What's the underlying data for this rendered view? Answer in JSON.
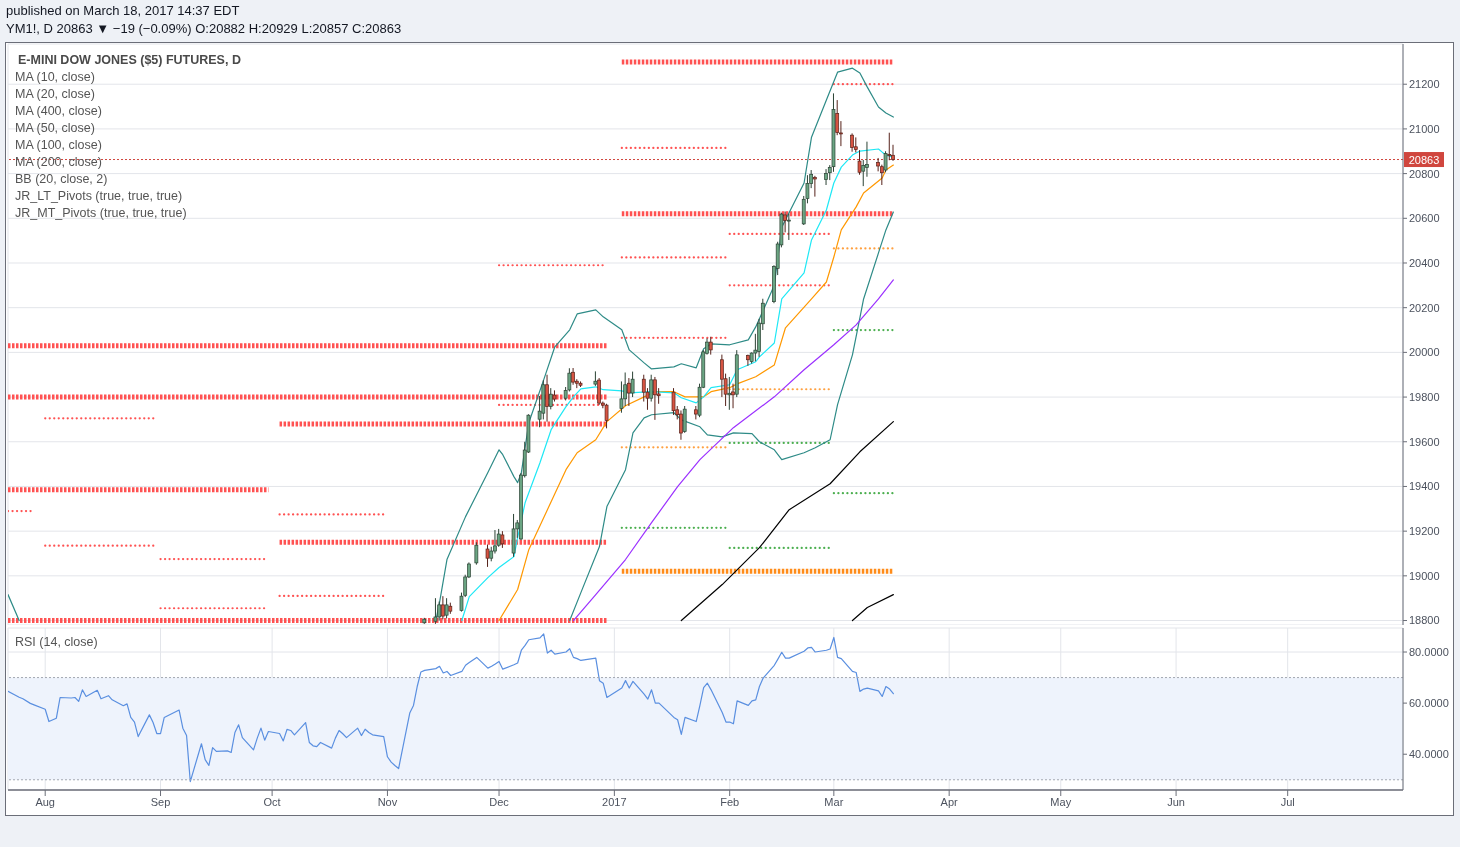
{
  "chart_data": [
    {
      "type": "candlestick",
      "title": "YM1!, D 20863 ▼ −19 (−0.09%) O:20882 H:20929 L:20857 C:20863",
      "subtitle": "E-MINI DOW JONES ($5) FUTURES, D",
      "annotations": [
        "published on March 18, 2017 14:37 EDT",
        "MA (10, close)",
        "MA (20, close)",
        "MA (400, close)",
        "MA (50, close)",
        "MA (100, close)",
        "MA (200, close)",
        "BB (20, close, 2)",
        "JR_LT_Pivots (true, true, true)",
        "JR_MT_Pivots (true, true, true)"
      ],
      "x": [
        "2016-11-11",
        "2016-11-14",
        "2016-11-15",
        "2016-11-16",
        "2016-11-17",
        "2016-11-18",
        "2016-11-21",
        "2016-11-22",
        "2016-11-23",
        "2016-11-25",
        "2016-11-28",
        "2016-11-29",
        "2016-11-30",
        "2016-12-01",
        "2016-12-02",
        "2016-12-05",
        "2016-12-06",
        "2016-12-07",
        "2016-12-08",
        "2016-12-09",
        "2016-12-12",
        "2016-12-13",
        "2016-12-14",
        "2016-12-15",
        "2016-12-16",
        "2016-12-19",
        "2016-12-20",
        "2016-12-21",
        "2016-12-22",
        "2016-12-23",
        "2016-12-27",
        "2016-12-28",
        "2016-12-29",
        "2016-12-30",
        "2017-01-03",
        "2017-01-04",
        "2017-01-05",
        "2017-01-06",
        "2017-01-09",
        "2017-01-10",
        "2017-01-11",
        "2017-01-12",
        "2017-01-13",
        "2017-01-17",
        "2017-01-18",
        "2017-01-19",
        "2017-01-20",
        "2017-01-23",
        "2017-01-24",
        "2017-01-25",
        "2017-01-26",
        "2017-01-27",
        "2017-01-30",
        "2017-01-31",
        "2017-02-01",
        "2017-02-02",
        "2017-02-03",
        "2017-02-06",
        "2017-02-07",
        "2017-02-08",
        "2017-02-09",
        "2017-02-10",
        "2017-02-13",
        "2017-02-14",
        "2017-02-15",
        "2017-02-16",
        "2017-02-17",
        "2017-02-21",
        "2017-02-22",
        "2017-02-23",
        "2017-02-24",
        "2017-02-27",
        "2017-02-28",
        "2017-03-01",
        "2017-03-02",
        "2017-03-03",
        "2017-03-06",
        "2017-03-07",
        "2017-03-08",
        "2017-03-09",
        "2017-03-10",
        "2017-03-13",
        "2017-03-14",
        "2017-03-15",
        "2017-03-16",
        "2017-03-17"
      ],
      "ohlc": [
        [
          18790,
          18812,
          18785,
          18806
        ],
        [
          18797,
          18900,
          18785,
          18816
        ],
        [
          18816,
          18885,
          18800,
          18870
        ],
        [
          18870,
          18909,
          18805,
          18820
        ],
        [
          18824,
          18900,
          18810,
          18870
        ],
        [
          18864,
          18880,
          18830,
          18842
        ],
        [
          18845,
          18925,
          18840,
          18909
        ],
        [
          18913,
          19005,
          18905,
          18995
        ],
        [
          18995,
          19060,
          18990,
          19053
        ],
        [
          19058,
          19150,
          19050,
          19137
        ],
        [
          19120,
          19140,
          19040,
          19079
        ],
        [
          19079,
          19130,
          19065,
          19111
        ],
        [
          19111,
          19205,
          19100,
          19134
        ],
        [
          19137,
          19210,
          19130,
          19187
        ],
        [
          19183,
          19200,
          19125,
          19143
        ],
        [
          19102,
          19277,
          19085,
          19210
        ],
        [
          19210,
          19250,
          19170,
          19237
        ],
        [
          19165,
          19460,
          19160,
          19451
        ],
        [
          19448,
          19600,
          19440,
          19563
        ],
        [
          19554,
          19723,
          19550,
          19719
        ],
        [
          19701,
          19805,
          19665,
          19737
        ],
        [
          19728,
          19875,
          19700,
          19855
        ],
        [
          19855,
          19900,
          19690,
          19758
        ],
        [
          19758,
          19840,
          19745,
          19813
        ],
        [
          19809,
          19830,
          19780,
          19791
        ],
        [
          19795,
          19845,
          19785,
          19829
        ],
        [
          19832,
          19929,
          19825,
          19907
        ],
        [
          19911,
          19930,
          19855,
          19867
        ],
        [
          19871,
          19880,
          19840,
          19862
        ],
        [
          19862,
          19870,
          19845,
          19853
        ],
        [
          19858,
          19915,
          19850,
          19871
        ],
        [
          19876,
          19885,
          19765,
          19773
        ],
        [
          19773,
          19780,
          19750,
          19764
        ],
        [
          19764,
          19770,
          19660,
          19695
        ],
        [
          19749,
          19870,
          19730,
          19792
        ],
        [
          19792,
          19910,
          19760,
          19855
        ],
        [
          19862,
          19885,
          19760,
          19818
        ],
        [
          19818,
          19914,
          19800,
          19880
        ],
        [
          19880,
          19900,
          19780,
          19822
        ],
        [
          19822,
          19840,
          19743,
          19795
        ],
        [
          19795,
          19900,
          19780,
          19877
        ],
        [
          19877,
          19890,
          19698,
          19810
        ],
        [
          19814,
          19840,
          19770,
          19806
        ],
        [
          19822,
          19840,
          19720,
          19739
        ],
        [
          19743,
          19760,
          19700,
          19721
        ],
        [
          19724,
          19740,
          19609,
          19639
        ],
        [
          19646,
          19760,
          19640,
          19746
        ],
        [
          19743,
          19760,
          19700,
          19724
        ],
        [
          19719,
          19860,
          19710,
          19844
        ],
        [
          19844,
          20010,
          19840,
          20002
        ],
        [
          19996,
          20063,
          19990,
          20046
        ],
        [
          20046,
          20070,
          19990,
          20011
        ],
        [
          19967,
          19990,
          19800,
          19880
        ],
        [
          19882,
          19905,
          19760,
          19813
        ],
        [
          19810,
          19890,
          19743,
          19817
        ],
        [
          19823,
          19860,
          19750,
          19810
        ],
        [
          19813,
          20010,
          19800,
          19989
        ],
        [
          19986,
          19990,
          19940,
          19967
        ],
        [
          19959,
          20000,
          19950,
          19997
        ],
        [
          19997,
          20083,
          19960,
          20010
        ],
        [
          20004,
          20150,
          19980,
          20131
        ],
        [
          20128,
          20240,
          20100,
          20220
        ],
        [
          20227,
          20390,
          20220,
          20384
        ],
        [
          20376,
          20495,
          20346,
          20485
        ],
        [
          20481,
          20625,
          20470,
          20619
        ],
        [
          20615,
          20630,
          20537,
          20590
        ],
        [
          20590,
          20620,
          20503,
          20592
        ],
        [
          20575,
          20700,
          20570,
          20685
        ],
        [
          20688,
          20793,
          20667,
          20756
        ],
        [
          20756,
          20816,
          20735,
          20797
        ],
        [
          20782,
          20790,
          20697,
          20776
        ],
        [
          20774,
          20820,
          20749,
          20801
        ],
        [
          20804,
          20838,
          20771,
          20828
        ],
        [
          20831,
          21159,
          20808,
          21087
        ],
        [
          21069,
          21129,
          20972,
          20984
        ],
        [
          20982,
          21035,
          20923,
          20980
        ],
        [
          20972,
          20980,
          20898,
          20917
        ],
        [
          20920,
          20962,
          20895,
          20908
        ],
        [
          20856,
          20905,
          20795,
          20806
        ],
        [
          20811,
          20861,
          20744,
          20837
        ],
        [
          20828,
          20943,
          20786,
          20841
        ],
        [
          20850,
          20870,
          20810,
          20834
        ],
        [
          20831,
          20840,
          20749,
          20804
        ],
        [
          20816,
          20900,
          20806,
          20890
        ],
        [
          20886,
          20983,
          20860,
          20882
        ],
        [
          20882,
          20929,
          20857,
          20863
        ]
      ],
      "colors": [
        "#6ba583",
        "#6ba583",
        "#6ba583",
        "#d75442",
        "#6ba583",
        "#d75442",
        "#6ba583",
        "#6ba583",
        "#6ba583",
        "#6ba583",
        "#d75442",
        "#6ba583",
        "#6ba583",
        "#6ba583",
        "#d75442",
        "#6ba583",
        "#6ba583",
        "#6ba583",
        "#6ba583",
        "#6ba583",
        "#6ba583",
        "#6ba583",
        "#d75442",
        "#6ba583",
        "#d75442",
        "#6ba583",
        "#6ba583",
        "#d75442",
        "#d75442",
        "#d75442",
        "#6ba583",
        "#d75442",
        "#d75442",
        "#d75442",
        "#6ba583",
        "#6ba583",
        "#d75442",
        "#6ba583",
        "#d75442",
        "#d75442",
        "#6ba583",
        "#d75442",
        "#d75442",
        "#d75442",
        "#d75442",
        "#d75442",
        "#6ba583",
        "#d75442",
        "#6ba583",
        "#6ba583",
        "#6ba583",
        "#d75442",
        "#d75442",
        "#d75442",
        "#6ba583",
        "#d75442",
        "#6ba583",
        "#d75442",
        "#6ba583",
        "#6ba583",
        "#6ba583",
        "#6ba583",
        "#6ba583",
        "#6ba583",
        "#6ba583",
        "#d75442",
        "#6ba583",
        "#6ba583",
        "#6ba583",
        "#6ba583",
        "#d75442",
        "#6ba583",
        "#6ba583",
        "#6ba583",
        "#d75442",
        "#d75442",
        "#d75442",
        "#d75442",
        "#d75442",
        "#6ba583",
        "#6ba583",
        "#d75442",
        "#d75442",
        "#6ba583",
        "#d75442",
        "#d75442"
      ],
      "series": [
        {
          "type": "line",
          "color": "#ff5252",
          "line_style": "dashed",
          "x": [
            "2016-07-22",
            "2016-12-30"
          ],
          "values": [
            20030,
            20030
          ]
        },
        {
          "type": "line",
          "color": "#ff5252",
          "line_style": "dashed",
          "x": [
            "2016-07-22",
            "2016-12-30"
          ],
          "values": [
            19800,
            19800
          ]
        },
        {
          "type": "line",
          "color": "#ff5252",
          "line_style": "dashed",
          "x": [
            "2016-10-03",
            "2016-12-30"
          ],
          "values": [
            19680,
            19680
          ]
        },
        {
          "type": "line",
          "color": "#ff5252",
          "line_style": "dashed",
          "x": [
            "2016-07-22",
            "2016-09-30"
          ],
          "values": [
            19385,
            19385
          ]
        },
        {
          "type": "line",
          "color": "#ff5252",
          "line_style": "dashed",
          "x": [
            "2016-10-03",
            "2016-12-30"
          ],
          "values": [
            19150,
            19150
          ]
        },
        {
          "type": "line",
          "color": "#ff5252",
          "line_style": "dashed",
          "x": [
            "2016-07-22",
            "2016-12-30"
          ],
          "values": [
            18800,
            18800
          ]
        },
        {
          "type": "line",
          "color": "#ff5252",
          "line_style": "dashed",
          "x": [
            "2017-01-03",
            "2017-03-17"
          ],
          "values": [
            21300,
            21300
          ]
        },
        {
          "type": "line",
          "color": "#ff5252",
          "line_style": "dashed",
          "x": [
            "2017-01-03",
            "2017-03-17"
          ],
          "values": [
            20620,
            20620
          ]
        },
        {
          "type": "line",
          "color": "#ff8c1a",
          "line_style": "dashed",
          "x": [
            "2017-01-03",
            "2017-03-17"
          ],
          "values": [
            19020,
            19020
          ]
        },
        {
          "type": "line",
          "color": "#ff5252",
          "line_style": "dotted",
          "x": [
            "2016-07-22",
            "2016-07-29"
          ],
          "values": [
            19290,
            19290
          ]
        },
        {
          "type": "line",
          "color": "#ff5252",
          "line_style": "dotted",
          "x": [
            "2016-08-01",
            "2016-08-31"
          ],
          "values": [
            19705,
            19705
          ]
        },
        {
          "type": "line",
          "color": "#ff5252",
          "line_style": "dotted",
          "x": [
            "2016-08-01",
            "2016-08-31"
          ],
          "values": [
            19135,
            19135
          ]
        },
        {
          "type": "line",
          "color": "#ff5252",
          "line_style": "dotted",
          "x": [
            "2016-09-01",
            "2016-09-30"
          ],
          "values": [
            19075,
            19075
          ]
        },
        {
          "type": "line",
          "color": "#ff5252",
          "line_style": "dotted",
          "x": [
            "2016-09-01",
            "2016-09-30"
          ],
          "values": [
            18855,
            18855
          ]
        },
        {
          "type": "line",
          "color": "#ff5252",
          "line_style": "dotted",
          "x": [
            "2016-10-03",
            "2016-10-31"
          ],
          "values": [
            19275,
            19275
          ]
        },
        {
          "type": "line",
          "color": "#ff5252",
          "line_style": "dotted",
          "x": [
            "2016-10-03",
            "2016-10-31"
          ],
          "values": [
            18910,
            18910
          ]
        },
        {
          "type": "line",
          "color": "#ff5252",
          "line_style": "dotted",
          "x": [
            "2016-12-01",
            "2016-12-30"
          ],
          "values": [
            20390,
            20390
          ]
        },
        {
          "type": "line",
          "color": "#ff5252",
          "line_style": "dotted",
          "x": [
            "2016-12-01",
            "2016-12-30"
          ],
          "values": [
            19765,
            19765
          ]
        },
        {
          "type": "line",
          "color": "#ff5252",
          "line_style": "dotted",
          "x": [
            "2017-01-03",
            "2017-01-31"
          ],
          "values": [
            20915,
            20915
          ]
        },
        {
          "type": "line",
          "color": "#ff5252",
          "line_style": "dotted",
          "x": [
            "2017-01-03",
            "2017-01-31"
          ],
          "values": [
            20425,
            20425
          ]
        },
        {
          "type": "line",
          "color": "#ff5252",
          "line_style": "dotted",
          "x": [
            "2017-01-03",
            "2017-01-31"
          ],
          "values": [
            20065,
            20065
          ]
        },
        {
          "type": "line",
          "color": "#ffa040",
          "line_style": "dotted",
          "x": [
            "2017-01-03",
            "2017-01-31"
          ],
          "values": [
            19575,
            19575
          ]
        },
        {
          "type": "line",
          "color": "#4caf50",
          "line_style": "dotted",
          "x": [
            "2017-01-03",
            "2017-01-31"
          ],
          "values": [
            19215,
            19215
          ]
        },
        {
          "type": "line",
          "color": "#ff5252",
          "line_style": "dotted",
          "x": [
            "2017-02-01",
            "2017-02-28"
          ],
          "values": [
            20530,
            20530
          ]
        },
        {
          "type": "line",
          "color": "#ff5252",
          "line_style": "dotted",
          "x": [
            "2017-02-01",
            "2017-02-28"
          ],
          "values": [
            20300,
            20300
          ]
        },
        {
          "type": "line",
          "color": "#ffa040",
          "line_style": "dotted",
          "x": [
            "2017-02-01",
            "2017-02-28"
          ],
          "values": [
            19835,
            19835
          ]
        },
        {
          "type": "line",
          "color": "#4caf50",
          "line_style": "dotted",
          "x": [
            "2017-02-01",
            "2017-02-28"
          ],
          "values": [
            19595,
            19595
          ]
        },
        {
          "type": "line",
          "color": "#4caf50",
          "line_style": "dotted",
          "x": [
            "2017-02-01",
            "2017-02-28"
          ],
          "values": [
            19125,
            19125
          ]
        },
        {
          "type": "line",
          "color": "#ff5252",
          "line_style": "dotted",
          "x": [
            "2017-03-01",
            "2017-03-17"
          ],
          "values": [
            21200,
            21200
          ]
        },
        {
          "type": "line",
          "color": "#ffa040",
          "line_style": "dotted",
          "x": [
            "2017-03-01",
            "2017-03-17"
          ],
          "values": [
            20465,
            20465
          ]
        },
        {
          "type": "line",
          "color": "#4caf50",
          "line_style": "dotted",
          "x": [
            "2017-03-01",
            "2017-03-17"
          ],
          "values": [
            20100,
            20100
          ]
        },
        {
          "type": "line",
          "color": "#4caf50",
          "line_style": "dotted",
          "x": [
            "2017-03-01",
            "2017-03-17"
          ],
          "values": [
            19370,
            19370
          ]
        },
        {
          "type": "line",
          "color": "#2e8b87",
          "x": [
            "2016-07-22",
            "2016-07-25",
            "2016-08-15",
            "2016-11-14",
            "2016-11-15",
            "2016-11-17",
            "2016-11-22",
            "2016-11-28",
            "2016-12-01",
            "2016-12-02",
            "2016-12-05",
            "2016-12-06",
            "2016-12-07",
            "2016-12-09",
            "2016-12-13",
            "2016-12-16",
            "2016-12-20",
            "2016-12-22",
            "2016-12-27",
            "2016-12-29",
            "2017-01-03",
            "2017-01-05",
            "2017-01-09",
            "2017-01-11",
            "2017-01-17",
            "2017-01-19",
            "2017-01-23",
            "2017-01-25",
            "2017-01-27",
            "2017-02-01",
            "2017-02-06",
            "2017-02-08",
            "2017-02-09",
            "2017-02-13",
            "2017-02-15",
            "2017-02-21",
            "2017-02-23",
            "2017-02-27",
            "2017-03-02",
            "2017-03-06",
            "2017-03-08",
            "2017-03-10",
            "2017-03-13",
            "2017-03-15",
            "2017-03-17"
          ],
          "values": [
            18916,
            18800,
            null,
            18800,
            18880,
            19073,
            19265,
            19462,
            19564,
            19542,
            19444,
            19417,
            19462,
            19685,
            19877,
            20025,
            20101,
            20172,
            20190,
            20159,
            20101,
            20011,
            19953,
            19926,
            19935,
            19949,
            19931,
            20016,
            20038,
            20034,
            20056,
            20114,
            20150,
            20300,
            20560,
            20758,
            20963,
            21129,
            21254,
            21272,
            21250,
            21187,
            21098,
            21071,
            21053
          ]
        },
        {
          "type": "line",
          "color": "#2e8b87",
          "x": [
            "2016-12-20",
            "2016-12-23",
            "2016-12-28",
            "2016-12-30",
            "2017-01-04",
            "2017-01-06",
            "2017-01-09",
            "2017-01-11",
            "2017-01-17",
            "2017-01-19",
            "2017-01-24",
            "2017-01-26",
            "2017-01-30",
            "2017-02-02",
            "2017-02-07",
            "2017-02-09",
            "2017-02-13",
            "2017-02-15",
            "2017-02-21",
            "2017-02-24",
            "2017-02-28",
            "2017-03-02",
            "2017-03-06",
            "2017-03-08",
            "2017-03-09",
            "2017-03-13",
            "2017-03-15",
            "2017-03-17"
          ],
          "values": [
            18800,
            18925,
            19131,
            19310,
            19475,
            19640,
            19707,
            19721,
            19730,
            19698,
            19667,
            19631,
            19622,
            19640,
            19636,
            19600,
            19564,
            19520,
            19551,
            19573,
            19609,
            19766,
            19989,
            20154,
            20239,
            20445,
            20548,
            20628
          ]
        },
        {
          "type": "line",
          "color": "#000000",
          "x": [
            "2017-01-19",
            "2017-01-30",
            "2017-02-09",
            "2017-02-17",
            "2017-02-28",
            "2017-03-08",
            "2017-03-17"
          ],
          "values": [
            18800,
            18961,
            19126,
            19296,
            19412,
            19555,
            19690
          ]
        },
        {
          "type": "line",
          "color": "#000000",
          "x": [
            "2017-03-06",
            "2017-03-10",
            "2017-03-17"
          ],
          "values": [
            18800,
            18858,
            18916
          ]
        },
        {
          "type": "line",
          "color": "#9b30ff",
          "x": [
            "2016-12-21",
            "2016-12-27",
            "2017-01-04",
            "2017-01-11",
            "2017-01-18",
            "2017-01-24",
            "2017-02-02",
            "2017-02-13",
            "2017-02-21",
            "2017-03-01",
            "2017-03-07",
            "2017-03-13",
            "2017-03-17"
          ],
          "values": [
            18800,
            18916,
            19073,
            19238,
            19399,
            19520,
            19663,
            19801,
            19922,
            20034,
            20123,
            20239,
            20324
          ]
        },
        {
          "type": "line",
          "color": "#ff9800",
          "x": [
            "2016-12-01",
            "2016-12-06",
            "2016-12-09",
            "2016-12-14",
            "2016-12-19",
            "2016-12-22",
            "2016-12-27",
            "2016-12-30",
            "2017-01-04",
            "2017-01-09",
            "2017-01-12",
            "2017-01-17",
            "2017-01-20",
            "2017-01-25",
            "2017-01-27",
            "2017-02-01",
            "2017-02-03",
            "2017-02-08",
            "2017-02-13",
            "2017-02-16",
            "2017-02-23",
            "2017-02-27",
            "2017-03-01",
            "2017-03-03",
            "2017-03-07",
            "2017-03-09",
            "2017-03-14",
            "2017-03-15",
            "2017-03-17"
          ],
          "values": [
            18800,
            18939,
            19117,
            19296,
            19475,
            19551,
            19609,
            19690,
            19761,
            19801,
            19824,
            19824,
            19801,
            19801,
            19824,
            19842,
            19859,
            19891,
            19944,
            20110,
            20239,
            20315,
            20427,
            20548,
            20651,
            20713,
            20780,
            20816,
            20838
          ]
        },
        {
          "type": "line",
          "color": "#1ee8f5",
          "x": [
            "2016-11-21",
            "2016-11-23",
            "2016-11-28",
            "2016-12-01",
            "2016-12-05",
            "2016-12-06",
            "2016-12-08",
            "2016-12-12",
            "2016-12-15",
            "2016-12-19",
            "2016-12-21",
            "2016-12-23",
            "2016-12-27",
            "2016-12-29",
            "2017-01-03",
            "2017-01-05",
            "2017-01-11",
            "2017-01-17",
            "2017-01-19",
            "2017-01-23",
            "2017-01-25",
            "2017-01-27",
            "2017-02-01",
            "2017-02-03",
            "2017-02-08",
            "2017-02-09",
            "2017-02-13",
            "2017-02-15",
            "2017-02-21",
            "2017-02-23",
            "2017-02-27",
            "2017-03-01",
            "2017-03-03",
            "2017-03-06",
            "2017-03-08",
            "2017-03-13",
            "2017-03-14",
            "2017-03-15",
            "2017-03-17"
          ],
          "values": [
            18800,
            18907,
            18992,
            19037,
            19086,
            19171,
            19327,
            19506,
            19654,
            19757,
            19801,
            19837,
            19846,
            19833,
            19828,
            19819,
            19824,
            19819,
            19797,
            19774,
            19801,
            19842,
            19855,
            19922,
            19958,
            19980,
            20042,
            20239,
            20356,
            20503,
            20637,
            20758,
            20829,
            20883,
            20901,
            20910,
            20896,
            20883,
            20874
          ]
        }
      ],
      "xlim": [
        "2016-07-22",
        "2017-08-01"
      ],
      "xticks": [
        {
          "value": "2016-08-01",
          "label": null
        },
        {
          "value": "2016-09-01",
          "label": null
        },
        {
          "value": "2016-10-01",
          "label": null
        },
        {
          "value": "2016-11-01",
          "label": null
        },
        {
          "value": "2016-12-01",
          "label": null
        },
        {
          "value": "2017-01-01",
          "label": null
        },
        {
          "value": "2017-02-01",
          "label": null
        },
        {
          "value": "2017-03-01",
          "label": null
        },
        {
          "value": "2017-04-01",
          "label": null
        },
        {
          "value": "2017-05-01",
          "label": null
        },
        {
          "value": "2017-06-01",
          "label": null
        },
        {
          "value": "2017-07-01",
          "label": null
        }
      ],
      "ylim": [
        18780,
        21380
      ],
      "yticks": [
        18800,
        19000,
        19200,
        19400,
        19600,
        19800,
        20000,
        20200,
        20400,
        20600,
        20800,
        21000,
        21200
      ],
      "grid": true,
      "tick_labels": "y",
      "ref_lines": [
        {
          "axis": "y",
          "value": 20863,
          "label": "20863",
          "color": "#d0463e",
          "line_style": "dotted"
        }
      ]
    },
    {
      "type": "line",
      "title": "RSI (14, close)",
      "x": [
        "2016-07-22",
        "2016-07-25",
        "2016-07-26",
        "2016-07-28",
        "2016-07-29",
        "2016-08-01",
        "2016-08-02",
        "2016-08-04",
        "2016-08-05",
        "2016-08-08",
        "2016-08-09",
        "2016-08-10",
        "2016-08-11",
        "2016-08-12",
        "2016-08-15",
        "2016-08-16",
        "2016-08-18",
        "2016-08-19",
        "2016-08-22",
        "2016-08-23",
        "2016-08-24",
        "2016-08-25",
        "2016-08-26",
        "2016-08-29",
        "2016-08-30",
        "2016-08-31",
        "2016-09-01",
        "2016-09-02",
        "2016-09-06",
        "2016-09-07",
        "2016-09-08",
        "2016-09-09",
        "2016-09-12",
        "2016-09-13",
        "2016-09-14",
        "2016-09-15",
        "2016-09-16",
        "2016-09-19",
        "2016-09-20",
        "2016-09-21",
        "2016-09-22",
        "2016-09-23",
        "2016-09-26",
        "2016-09-27",
        "2016-09-28",
        "2016-09-29",
        "2016-09-30",
        "2016-10-03",
        "2016-10-04",
        "2016-10-05",
        "2016-10-06",
        "2016-10-07",
        "2016-10-10",
        "2016-10-11",
        "2016-10-12",
        "2016-10-13",
        "2016-10-14",
        "2016-10-17",
        "2016-10-18",
        "2016-10-19",
        "2016-10-20",
        "2016-10-21",
        "2016-10-24",
        "2016-10-25",
        "2016-10-26",
        "2016-10-27",
        "2016-10-28",
        "2016-10-31",
        "2016-11-01",
        "2016-11-02",
        "2016-11-03",
        "2016-11-04",
        "2016-11-07",
        "2016-11-08",
        "2016-11-09",
        "2016-11-10",
        "2016-11-11",
        "2016-11-14",
        "2016-11-15",
        "2016-11-16",
        "2016-11-17",
        "2016-11-18",
        "2016-11-21",
        "2016-11-22",
        "2016-11-23",
        "2016-11-25",
        "2016-11-28",
        "2016-11-29",
        "2016-11-30",
        "2016-12-01",
        "2016-12-02",
        "2016-12-05",
        "2016-12-06",
        "2016-12-07",
        "2016-12-08",
        "2016-12-09",
        "2016-12-12",
        "2016-12-13",
        "2016-12-14",
        "2016-12-15",
        "2016-12-16",
        "2016-12-19",
        "2016-12-20",
        "2016-12-21",
        "2016-12-22",
        "2016-12-23",
        "2016-12-27",
        "2016-12-28",
        "2016-12-29",
        "2016-12-30",
        "2017-01-03",
        "2017-01-04",
        "2017-01-05",
        "2017-01-06",
        "2017-01-09",
        "2017-01-10",
        "2017-01-11",
        "2017-01-12",
        "2017-01-13",
        "2017-01-17",
        "2017-01-18",
        "2017-01-19",
        "2017-01-20",
        "2017-01-23",
        "2017-01-24",
        "2017-01-25",
        "2017-01-26",
        "2017-01-27",
        "2017-01-30",
        "2017-01-31",
        "2017-02-01",
        "2017-02-02",
        "2017-02-03",
        "2017-02-06",
        "2017-02-07",
        "2017-02-08",
        "2017-02-09",
        "2017-02-10",
        "2017-02-13",
        "2017-02-14",
        "2017-02-15",
        "2017-02-16",
        "2017-02-17",
        "2017-02-21",
        "2017-02-22",
        "2017-02-23",
        "2017-02-24",
        "2017-02-27",
        "2017-02-28",
        "2017-03-01",
        "2017-03-02",
        "2017-03-03",
        "2017-03-06",
        "2017-03-07",
        "2017-03-08",
        "2017-03-09",
        "2017-03-10",
        "2017-03-13",
        "2017-03-14",
        "2017-03-15",
        "2017-03-16",
        "2017-03-17"
      ],
      "series": [
        {
          "color": "#5a8fe0",
          "values": [
            64.6,
            62.3,
            61.7,
            59.9,
            59.3,
            57.6,
            52.8,
            54.1,
            62.2,
            62.0,
            62.2,
            60.7,
            65.2,
            62.6,
            65.0,
            61.7,
            62.9,
            61.3,
            59.0,
            59.7,
            54.4,
            52.6,
            46.9,
            55.4,
            52.4,
            48.1,
            48.1,
            54.4,
            57.3,
            50.2,
            47.3,
            29.3,
            44.1,
            37.9,
            35.6,
            42.6,
            41.1,
            41.3,
            40.7,
            48.5,
            51.5,
            46.5,
            41.7,
            46.3,
            50.2,
            45.5,
            48.9,
            48.1,
            45.2,
            49.7,
            49.3,
            47.6,
            52.4,
            44.6,
            43.3,
            43.0,
            44.6,
            42.4,
            46.3,
            49.3,
            48.0,
            46.5,
            50.2,
            47.3,
            49.8,
            48.5,
            47.6,
            46.9,
            39.0,
            36.9,
            35.6,
            34.4,
            56.1,
            59.1,
            66.5,
            72.2,
            72.8,
            73.5,
            74.4,
            71.8,
            72.4,
            70.8,
            72.4,
            74.8,
            75.9,
            77.9,
            73.7,
            74.4,
            75.3,
            76.3,
            73.3,
            75.0,
            75.7,
            80.7,
            82.6,
            84.8,
            85.5,
            87.1,
            79.6,
            80.7,
            79.2,
            80.0,
            81.3,
            77.9,
            77.4,
            76.7,
            77.6,
            68.8,
            67.8,
            62.2,
            65.9,
            68.8,
            65.9,
            68.5,
            63.5,
            61.6,
            65.2,
            60.0,
            60.0,
            54.4,
            53.5,
            47.8,
            54.4,
            52.8,
            59.1,
            66.1,
            67.8,
            65.2,
            56.3,
            52.6,
            52.6,
            51.9,
            60.9,
            59.1,
            60.9,
            61.3,
            66.5,
            69.8,
            74.8,
            77.3,
            79.9,
            77.6,
            77.6,
            80.3,
            81.6,
            81.8,
            80.0,
            80.7,
            81.2,
            85.7,
            77.9,
            77.4,
            72.4,
            72.0,
            64.6,
            65.5,
            65.9,
            64.8,
            62.6,
            66.5,
            65.5,
            63.7
          ]
        }
      ],
      "xlim": [
        "2016-07-22",
        "2017-08-01"
      ],
      "xticks": [
        {
          "value": "2016-08-01",
          "label": "Aug"
        },
        {
          "value": "2016-09-01",
          "label": "Sep"
        },
        {
          "value": "2016-10-01",
          "label": "Oct"
        },
        {
          "value": "2016-11-01",
          "label": "Nov"
        },
        {
          "value": "2016-12-01",
          "label": "Dec"
        },
        {
          "value": "2017-01-01",
          "label": "2017"
        },
        {
          "value": "2017-02-01",
          "label": "Feb"
        },
        {
          "value": "2017-03-01",
          "label": "Mar"
        },
        {
          "value": "2017-04-01",
          "label": "Apr"
        },
        {
          "value": "2017-05-01",
          "label": "May"
        },
        {
          "value": "2017-06-01",
          "label": "Jun"
        },
        {
          "value": "2017-07-01",
          "label": "Jul"
        }
      ],
      "ylim": [
        26,
        89.4
      ],
      "yticks": [
        {
          "value": 40,
          "label": "40.0000"
        },
        {
          "value": 60,
          "label": "60.0000"
        },
        {
          "value": 80,
          "label": "80.0000"
        }
      ],
      "grid": true,
      "bands": [
        {
          "axis": "y",
          "from": 30,
          "to": 70,
          "color": "#eef3fc"
        }
      ],
      "ref_lines": [
        {
          "axis": "y",
          "value": 70,
          "color": "#a3a7b0",
          "line_style": "dotted"
        },
        {
          "axis": "y",
          "value": 30,
          "color": "#a3a7b0",
          "line_style": "dotted"
        }
      ]
    }
  ]
}
